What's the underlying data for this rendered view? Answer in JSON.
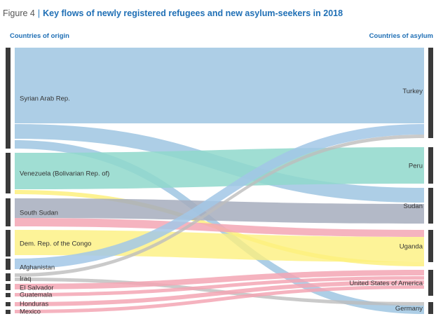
{
  "figure": {
    "number": "Figure 4",
    "separator": "|",
    "title": "Key flows of newly registered refugees and new asylum-seekers in 2018"
  },
  "headers": {
    "left": "Countries of origin",
    "right": "Countries of asylum"
  },
  "colors": {
    "bar": "#3a3a3a",
    "syria": "#9fc6e2",
    "venezuela": "#8fd8cb",
    "south_sudan": "#a6adbd",
    "drc": "#fdf07e",
    "afghanistan": "#a2c7e6",
    "iraq": "#bdbdbd",
    "central_america": "#f3a6b4",
    "ss_to_usa": "#f3a6b4"
  },
  "chart_data": {
    "type": "sankey",
    "title": "Key flows of newly registered refugees and new asylum-seekers in 2018",
    "left_label": "Countries of origin",
    "right_label": "Countries of asylum",
    "sources": [
      "Syrian Arab Rep.",
      "Venezuela (Bolivarian Rep. of)",
      "South Sudan",
      "Dem. Rep. of the Congo",
      "Afghanistan",
      "Iraq",
      "El Salvador",
      "Guatemala",
      "Honduras",
      "Mexico"
    ],
    "targets": [
      "Turkey",
      "Peru",
      "Sudan",
      "Uganda",
      "United States of America",
      "Germany"
    ],
    "flows": [
      {
        "source": "Syrian Arab Rep.",
        "target": "Turkey",
        "value": 108
      },
      {
        "source": "Syrian Arab Rep.",
        "target": "Sudan",
        "value": 21
      },
      {
        "source": "Syrian Arab Rep.",
        "target": "Germany",
        "value": 12
      },
      {
        "source": "Venezuela (Bolivarian Rep. of)",
        "target": "Peru",
        "value": 52
      },
      {
        "source": "South Sudan",
        "target": "Uganda",
        "value": 6
      },
      {
        "source": "South Sudan",
        "target": "Sudan",
        "value": 28
      },
      {
        "source": "South Sudan",
        "target": "United States of America",
        "value": 6
      },
      {
        "source": "Dem. Rep. of the Congo",
        "target": "Uganda",
        "value": 36
      },
      {
        "source": "Afghanistan",
        "target": "Turkey",
        "value": 15
      },
      {
        "source": "Iraq",
        "target": "Turkey",
        "value": 5
      },
      {
        "source": "Iraq",
        "target": "Germany",
        "value": 5
      },
      {
        "source": "El Salvador",
        "target": "United States of America",
        "value": 8
      },
      {
        "source": "Guatemala",
        "target": "United States of America",
        "value": 5
      },
      {
        "source": "Honduras",
        "target": "United States of America",
        "value": 6
      },
      {
        "source": "Mexico",
        "target": "United States of America",
        "value": 5
      }
    ]
  }
}
